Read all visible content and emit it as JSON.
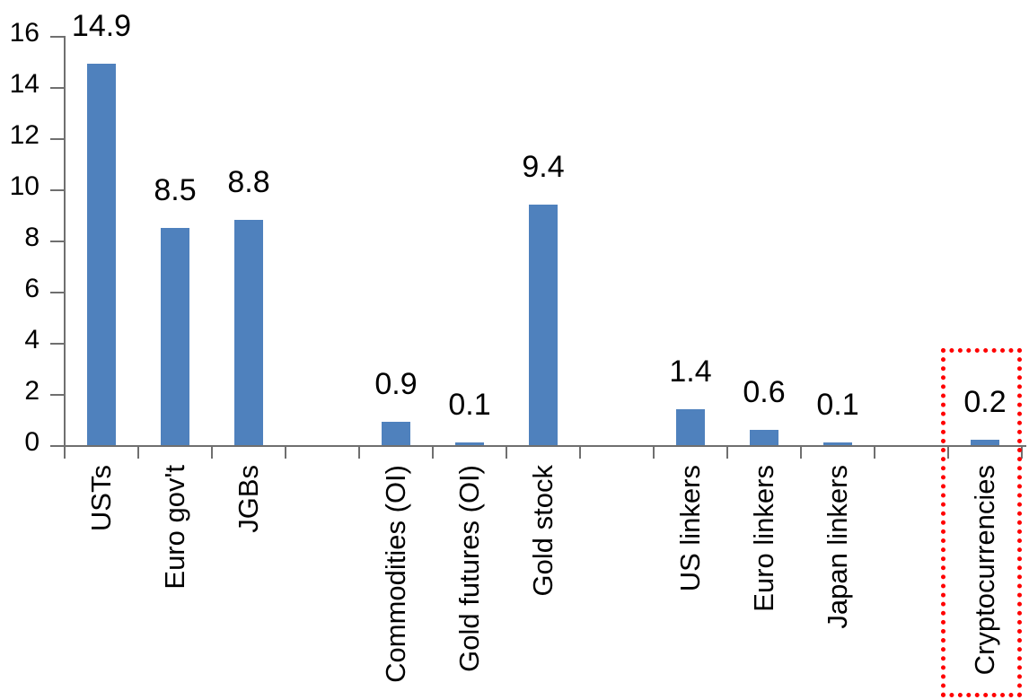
{
  "chart_data": {
    "type": "bar",
    "title": "",
    "xlabel": "",
    "ylabel": "",
    "categories": [
      "USTs",
      "Euro gov't",
      "JGBs",
      "Commodities (OI)",
      "Gold futures (OI)",
      "Gold stock",
      "US linkers",
      "Euro linkers",
      "Japan linkers",
      "Cryptocurrencies"
    ],
    "values": [
      14.9,
      8.5,
      8.8,
      0.9,
      0.1,
      9.4,
      1.4,
      0.6,
      0.1,
      0.2
    ],
    "value_labels": [
      "14.9",
      "8.5",
      "8.8",
      "0.9",
      "0.1",
      "9.4",
      "1.4",
      "0.6",
      "0.1",
      "0.2"
    ],
    "slot_index": [
      0,
      1,
      2,
      4,
      5,
      6,
      8,
      9,
      10,
      12
    ],
    "slot_count": 13,
    "y_axis": {
      "min": 0,
      "max": 16,
      "tick_step": 2,
      "tick_labels": [
        "16",
        "14",
        "12",
        "10",
        "8",
        "6",
        "4",
        "2",
        "0"
      ]
    },
    "grid": false,
    "legend": false,
    "background_color": "#FFFFFF",
    "bar_color": "#4F81BD",
    "axis_color": "#6F6F6F",
    "text_color": "#000000",
    "highlight": {
      "category": "Cryptocurrencies",
      "shape": "dotted-rectangle",
      "color": "#FF0000"
    }
  }
}
